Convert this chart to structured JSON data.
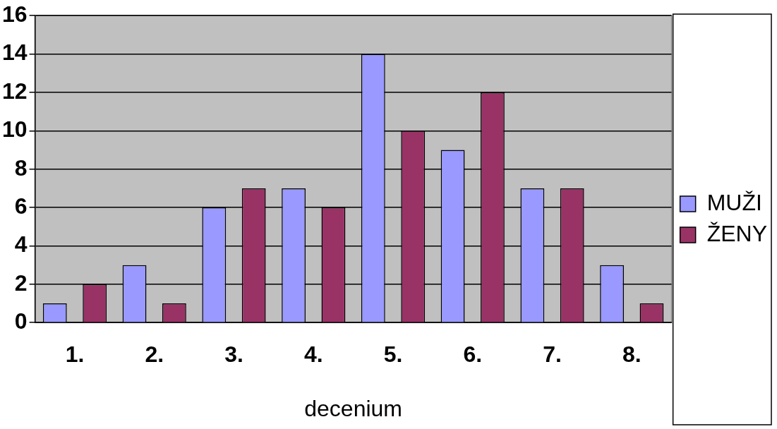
{
  "chart_data": {
    "type": "bar",
    "xlabel": "decenium",
    "categories": [
      "1.",
      "2.",
      "3.",
      "4.",
      "5.",
      "6.",
      "7.",
      "8."
    ],
    "series": [
      {
        "name": "MUŽI",
        "color": "#9999ff",
        "values": [
          1,
          3,
          6,
          7,
          14,
          9,
          7,
          3
        ]
      },
      {
        "name": "ŽENY",
        "color": "#993366",
        "values": [
          2,
          1,
          7,
          6,
          10,
          12,
          7,
          1
        ]
      }
    ],
    "ylim": [
      0,
      16
    ],
    "yticks": [
      0,
      2,
      4,
      6,
      8,
      10,
      12,
      14,
      16
    ],
    "grid": "y",
    "legend": "right"
  }
}
